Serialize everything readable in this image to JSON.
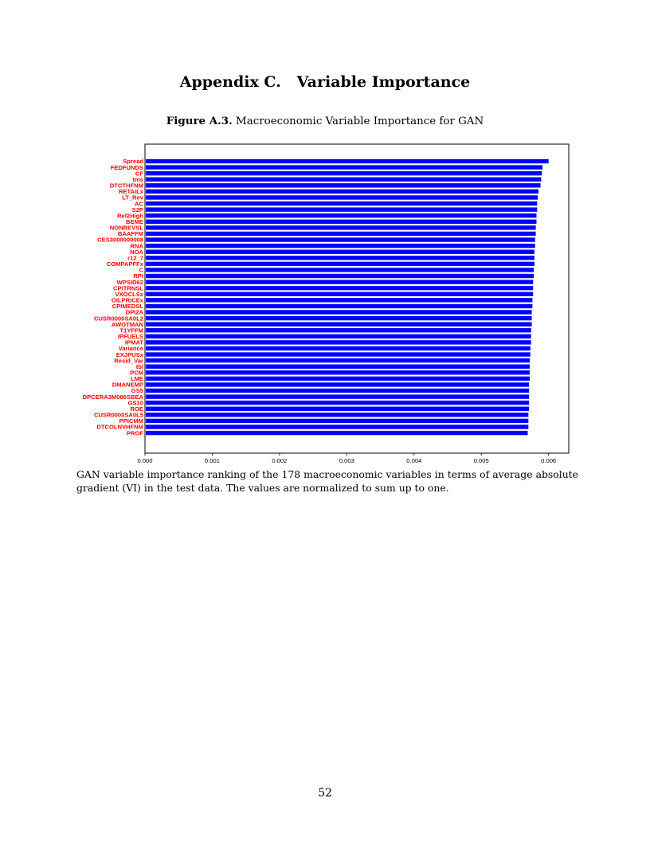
{
  "page": {
    "heading": "Appendix C.   Variable Importance",
    "figure_label": "Figure A.3.",
    "figure_title": "Macroeconomic Variable Importance for GAN",
    "note": "GAN variable importance ranking of the 178 macroeconomic variables in terms of average absolute gradient (VI) in the test data. The values are normalized to sum up to one.",
    "page_number": "52"
  },
  "chart_data": {
    "type": "bar",
    "orientation": "horizontal",
    "categories": [
      "Spread",
      "FEDFUNDS",
      "CF",
      "tms",
      "DTCTHFNM",
      "RETAILx",
      "LT_Rev",
      "AC",
      "S2P",
      "Rel2High",
      "BEME",
      "NONREVSL",
      "BAAFFM",
      "CES3000000008",
      "RNA",
      "NOA",
      "r12_7",
      "COMPAPFFx",
      "C",
      "RPI",
      "WPSID62",
      "CPITRNSL",
      "VXOCLSx",
      "OILPRICEx",
      "CPIMEDSL",
      "DPI2A",
      "CUSR0000SA0L2",
      "AWOTMAN",
      "T1YFFM",
      "IPFUELS",
      "IPMAT",
      "Variance",
      "EXJPUSx",
      "Resid_Var",
      "tbl",
      "PCM",
      "LME",
      "DMANEMP",
      "GS5",
      "DPCERA3M086SBEA",
      "GS10",
      "ROE",
      "CUSR0000SA0L5",
      "PPICMM",
      "DTCOLNVHFNM",
      "PROF"
    ],
    "values": [
      0.006,
      0.00591,
      0.0059,
      0.00589,
      0.00588,
      0.00585,
      0.00584,
      0.00583,
      0.00583,
      0.00582,
      0.00582,
      0.00581,
      0.00581,
      0.0058,
      0.0058,
      0.00579,
      0.00579,
      0.00579,
      0.00578,
      0.00578,
      0.00577,
      0.00577,
      0.00577,
      0.00576,
      0.00576,
      0.00575,
      0.00575,
      0.00575,
      0.00574,
      0.00574,
      0.00574,
      0.00573,
      0.00573,
      0.00572,
      0.00572,
      0.00572,
      0.00572,
      0.00571,
      0.00571,
      0.00571,
      0.00571,
      0.00571,
      0.0057,
      0.0057,
      0.0057,
      0.00569
    ],
    "xticks": [
      "0.000",
      "0.001",
      "0.002",
      "0.003",
      "0.004",
      "0.005",
      "0.006"
    ],
    "xlim": [
      0,
      0.0063
    ],
    "bar_color": "#0000ff",
    "label_color": "#ff0000"
  }
}
